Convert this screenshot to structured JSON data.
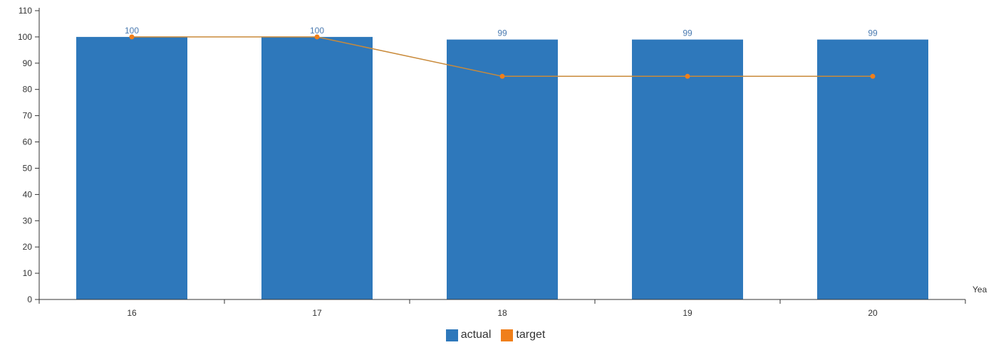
{
  "chart_data": {
    "type": "bar",
    "categories": [
      "16",
      "17",
      "18",
      "19",
      "20"
    ],
    "series": [
      {
        "name": "actual",
        "type": "bar",
        "values": [
          100,
          100,
          99,
          99,
          99
        ],
        "data_labels": [
          "100",
          "100",
          "99",
          "99",
          "99"
        ],
        "color": "#2e78bb"
      },
      {
        "name": "target",
        "type": "line",
        "values": [
          100,
          100,
          85,
          85,
          85
        ],
        "color": "#f07f1a"
      }
    ],
    "xlabel": "Yea",
    "ylabel": "",
    "ylim": [
      0,
      110
    ],
    "yticks": [
      0,
      10,
      20,
      30,
      40,
      50,
      60,
      70,
      80,
      90,
      100,
      110
    ],
    "grid": false,
    "legend_position": "bottom-center"
  }
}
